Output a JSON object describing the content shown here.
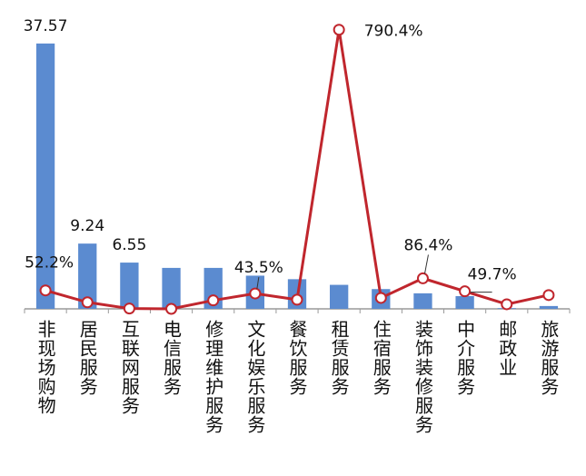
{
  "chart_data": {
    "type": "bar-line",
    "categories": [
      "非现场购物",
      "居民服务",
      "互联网服务",
      "电信服务",
      "修理维护服务",
      "文化娱乐服务",
      "餐饮服务",
      "租赁服务",
      "住宿服务",
      "装饰装修服务",
      "中介服务",
      "邮政业",
      "旅游服务"
    ],
    "series": [
      {
        "type": "bar",
        "color": "#5b8bd0",
        "values": [
          37.57,
          9.24,
          6.55,
          5.8,
          5.8,
          4.7,
          4.2,
          3.4,
          2.8,
          2.2,
          1.8,
          0.1,
          0.4
        ],
        "value_labels": [
          "37.57",
          "9.24",
          "6.55",
          null,
          null,
          null,
          null,
          null,
          null,
          null,
          null,
          null,
          null
        ]
      },
      {
        "type": "line",
        "axis": "y2",
        "color": "#c0262d",
        "values": [
          52.2,
          18.6,
          1,
          0,
          24,
          43.5,
          26,
          790.4,
          31,
          86.4,
          49.7,
          13,
          39
        ],
        "value_labels": [
          "52.2%",
          null,
          null,
          null,
          null,
          "43.5%",
          null,
          "790.4%",
          null,
          "86.4%",
          "49.7%",
          null,
          null
        ]
      }
    ],
    "ylim": [
      0,
      40
    ],
    "y2lim": [
      0,
      800
    ]
  }
}
